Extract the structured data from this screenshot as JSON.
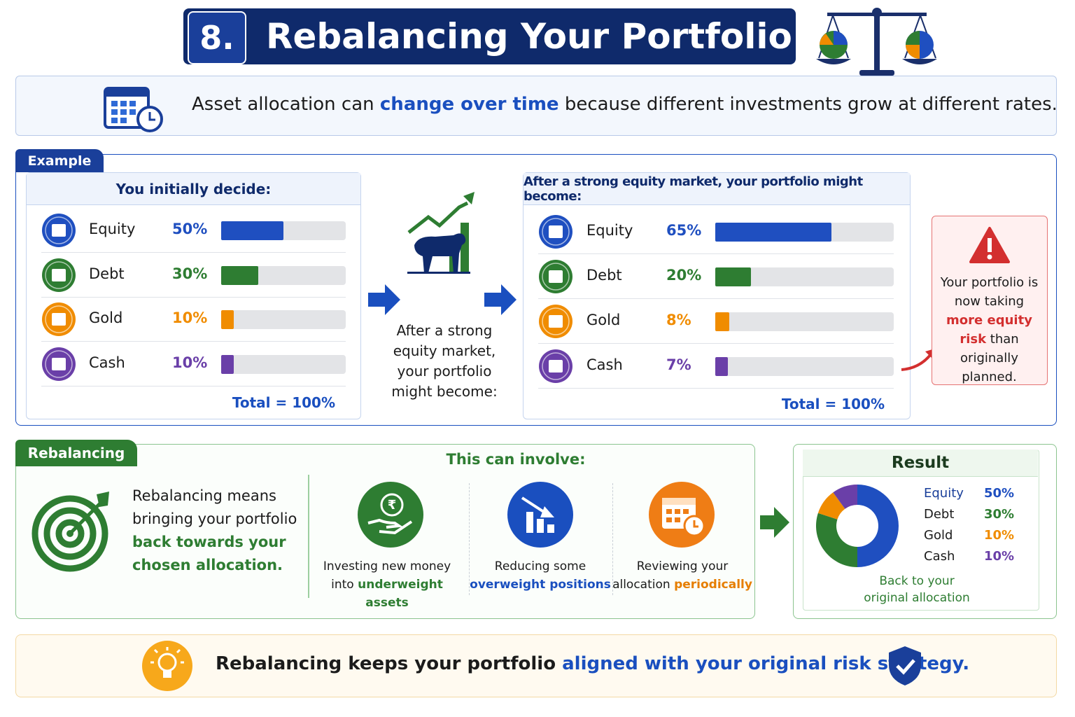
{
  "header": {
    "number": "8.",
    "title": "Rebalancing Your Portfolio"
  },
  "intro": {
    "before": "Asset allocation can",
    "highlight": "change over time",
    "after": "because different investments grow at different rates."
  },
  "example": {
    "label": "Example",
    "before": {
      "title": "You initially decide:",
      "rows": [
        {
          "name": "Equity",
          "value": 50,
          "label": "50%",
          "color": "#1f4fc0"
        },
        {
          "name": "Debt",
          "value": 30,
          "label": "30%",
          "color": "#2e7d32"
        },
        {
          "name": "Gold",
          "value": 10,
          "label": "10%",
          "color": "#f08c00"
        },
        {
          "name": "Cash",
          "value": 10,
          "label": "10%",
          "color": "#6a3fa8"
        }
      ],
      "total": {
        "value": 100,
        "label": "Total = 100%"
      }
    },
    "middle_caption": "After a strong equity market, your portfolio might become:",
    "after": {
      "title": "After a strong equity market, your portfolio might become:",
      "rows": [
        {
          "name": "Equity",
          "value": 65,
          "label": "65%",
          "color": "#1f4fc0"
        },
        {
          "name": "Debt",
          "value": 20,
          "label": "20%",
          "color": "#2e7d32"
        },
        {
          "name": "Gold",
          "value": 8,
          "label": "8%",
          "color": "#f08c00"
        },
        {
          "name": "Cash",
          "value": 7,
          "label": "7%",
          "color": "#6a3fa8"
        }
      ],
      "total": {
        "value": 100,
        "label": "Total = 100%"
      }
    },
    "warning": {
      "before": "Your portfolio is now taking",
      "highlight": "more equity risk",
      "after": "than originally planned."
    }
  },
  "rebalancing": {
    "label": "Rebalancing",
    "description": {
      "before": "Rebalancing means bringing your portfolio",
      "highlight": "back towards your chosen allocation."
    },
    "involve_title": "This can involve:",
    "items": [
      {
        "text": "Investing new money into",
        "highlight": "underweight assets"
      },
      {
        "text": "Reducing some",
        "highlight": "overweight positions"
      },
      {
        "text": "Reviewing your allocation",
        "highlight": "periodically"
      }
    ]
  },
  "result": {
    "title": "Result",
    "rows": [
      {
        "name": "Equity",
        "value": 50,
        "label": "50%",
        "color": "#1f4fc0"
      },
      {
        "name": "Debt",
        "value": 30,
        "label": "30%",
        "color": "#2e7d32"
      },
      {
        "name": "Gold",
        "value": 10,
        "label": "10%",
        "color": "#f08c00"
      },
      {
        "name": "Cash",
        "value": 10,
        "label": "10%",
        "color": "#6a3fa8"
      }
    ],
    "caption": "Back to your original allocation"
  },
  "footer": {
    "before": "Rebalancing keeps your portfolio",
    "highlight": "aligned with your original risk strategy."
  }
}
